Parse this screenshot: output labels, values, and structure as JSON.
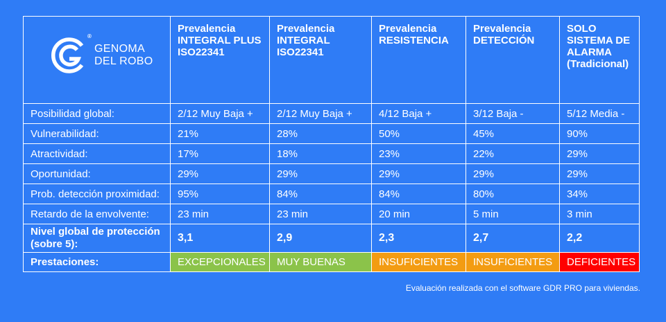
{
  "brand": {
    "line1": "GENOMA",
    "line2": "DEL ROBO",
    "registered": "®"
  },
  "columns": [
    {
      "header": "Prevalencia INTEGRAL PLUS ISO22341"
    },
    {
      "header": "Prevalencia INTEGRAL ISO22341"
    },
    {
      "header": "Prevalencia RESISTENCIA"
    },
    {
      "header": "Prevalencia DETECCIÓN"
    },
    {
      "header": "SOLO SISTEMA DE ALARMA (Tradicional)"
    }
  ],
  "rows": [
    {
      "label": "Posibilidad global:",
      "values": [
        "2/12 Muy Baja +",
        "2/12 Muy Baja +",
        "4/12 Baja +",
        "3/12 Baja -",
        "5/12 Media -"
      ]
    },
    {
      "label": "Vulnerabilidad:",
      "values": [
        "21%",
        "28%",
        "50%",
        "45%",
        "90%"
      ]
    },
    {
      "label": "Atractividad:",
      "values": [
        "17%",
        "18%",
        "23%",
        "22%",
        "29%"
      ]
    },
    {
      "label": "Oportunidad:",
      "values": [
        "29%",
        "29%",
        "29%",
        "29%",
        "29%"
      ]
    },
    {
      "label": "Prob. detección proximidad:",
      "values": [
        "95%",
        "84%",
        "84%",
        "80%",
        "34%"
      ]
    },
    {
      "label": "Retardo de la envolvente:",
      "values": [
        "23 min",
        "23 min",
        "20 min",
        "5 min",
        "3 min"
      ]
    }
  ],
  "nivel": {
    "label": "Nivel global de protección (sobre 5):",
    "values": [
      "3,1",
      "2,9",
      "2,3",
      "2,7",
      "2,2"
    ]
  },
  "prestaciones": {
    "label": "Prestaciones:",
    "values": [
      "EXCEPCIONALES",
      "MUY BUENAS",
      "INSUFICIENTES",
      "INSUFICIENTES",
      "DEFICIENTES"
    ],
    "colors": [
      "#8bc34a",
      "#8bc34a",
      "#f39c12",
      "#f39c12",
      "#ff0000"
    ]
  },
  "footnote": "Evaluación realizada con el software GDR PRO para viviendas.",
  "theme": {
    "background": "#2f7cf6",
    "border": "#ffffff",
    "text": "#ffffff"
  }
}
